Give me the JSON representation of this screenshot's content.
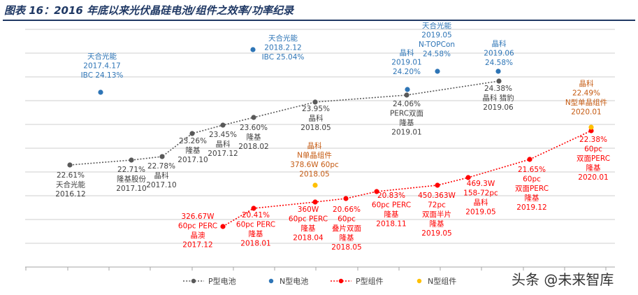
{
  "page": {
    "title": "图表 16：2016 年底以来光伏晶硅电池/组件之效率/功率纪录",
    "watermark": "头条 @未来智库"
  },
  "colors": {
    "p_cell": "#595959",
    "n_cell": "#2e75b6",
    "p_module": "#ff0000",
    "n_module": "#ffc000",
    "grid": "#bfbfbf",
    "n_cell_text": "#2e75b6",
    "n_module_text": "#c55a11"
  },
  "chart_data": {
    "type": "scatter",
    "title": "",
    "xlabel": "",
    "ylabel": "",
    "grid": true,
    "legend_placement": "bottom",
    "legend": [
      {
        "label": "P型电池",
        "style": "dotted-line",
        "color": "#595959"
      },
      {
        "label": "N型电池",
        "style": "marker",
        "color": "#2e75b6"
      },
      {
        "label": "P型组件",
        "style": "dotted-line",
        "color": "#ff0000"
      },
      {
        "label": "N型组件",
        "style": "marker",
        "color": "#ffc000"
      }
    ],
    "series": [
      {
        "name": "P型电池",
        "key": "p_cell",
        "line": true,
        "points": [
          {
            "label": [
              "22.61%",
              "天合光能",
              "2016.12"
            ],
            "v": 22.61
          },
          {
            "label": [
              "22.71%",
              "隆基股份",
              "2017.10"
            ],
            "v": 22.71
          },
          {
            "label": [
              "22.78%",
              "晶科",
              "2017.10"
            ],
            "v": 22.78
          },
          {
            "label": [
              "23.26%",
              "隆基",
              "2017.10"
            ],
            "v": 23.26
          },
          {
            "label": [
              "23.45%",
              "晶科",
              "2017.12"
            ],
            "v": 23.45
          },
          {
            "label": [
              "23.60%",
              "隆基",
              "2018.02"
            ],
            "v": 23.6
          },
          {
            "label": [
              "23.95%",
              "晶科",
              "2018.05"
            ],
            "v": 23.95
          },
          {
            "label": [
              "24.06%",
              "PERC双面",
              "隆基",
              "2019.01"
            ],
            "v": 24.06
          },
          {
            "label": [
              "24.38%",
              "晶科 猎豹",
              "2019.06"
            ],
            "v": 24.38
          }
        ]
      },
      {
        "name": "N型电池",
        "key": "n_cell",
        "line": false,
        "points": [
          {
            "label": [
              "天合光能",
              "2017.4.17",
              "IBC 24.13%"
            ]
          },
          {
            "label": [
              "天合光能",
              "2018.2.12",
              "IBC 25.04%"
            ]
          },
          {
            "label": [
              "晶科",
              "2019.01",
              "24.20%"
            ]
          },
          {
            "label": [
              "天合光能",
              "2019.05",
              "N-TOPCon",
              "24.58%"
            ]
          },
          {
            "label": [
              "晶科",
              "2019.06",
              "24.58%"
            ]
          }
        ]
      },
      {
        "name": "P型组件",
        "key": "p_module",
        "line": true,
        "points": [
          {
            "label": [
              "326.67W",
              "60pc PERC",
              "晶澳",
              "2017.12"
            ]
          },
          {
            "label": [
              "20.41%",
              "60pc PERC",
              "隆基",
              "2018.01"
            ]
          },
          {
            "label": [
              "360W",
              "60pc PERC",
              "隆基",
              "2018.04"
            ]
          },
          {
            "label": [
              "20.66%",
              "60pc",
              "叠片双面",
              "隆基",
              "2018.05"
            ]
          },
          {
            "label": [
              "20.83%",
              "60pc PERC",
              "隆基",
              "2018.11"
            ]
          },
          {
            "label": [
              "450.363W",
              "72pc",
              "双面半片",
              "隆基",
              "2019.05"
            ]
          },
          {
            "label": [
              "469.3W",
              "158-72pc",
              "晶科",
              "2019.05"
            ]
          },
          {
            "label": [
              "21.65%",
              "60pc",
              "双面PERC",
              "隆基",
              "2019.12"
            ]
          },
          {
            "label": [
              "22.38%",
              "60pc",
              "双面PERC",
              "隆基",
              "2020.01"
            ]
          }
        ]
      },
      {
        "name": "N型组件",
        "key": "n_module",
        "line": false,
        "points": [
          {
            "label": [
              "晶科",
              "N单晶组件",
              "378.6W 60pc",
              "2018.05"
            ]
          },
          {
            "label": [
              "晶科",
              "22.49%",
              "N型单晶组件",
              "2020.01"
            ]
          }
        ]
      }
    ]
  }
}
